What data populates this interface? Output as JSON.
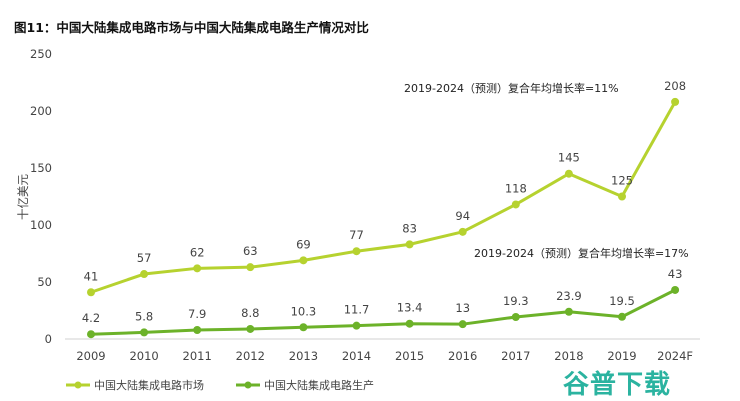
{
  "title": "图11：中国大陆集成电路市场与中国大陆集成电路生产情况对比",
  "watermark": "谷普下载",
  "chart_data": {
    "type": "line",
    "title": "图11：中国大陆集成电路市场与中国大陆集成电路生产情况对比",
    "xlabel": "",
    "ylabel": "十亿美元",
    "ylim": [
      0,
      250
    ],
    "yticks": [
      0,
      50,
      100,
      150,
      200,
      250
    ],
    "grid": false,
    "legend": "bottom-left",
    "categories": [
      "2009",
      "2010",
      "2011",
      "2012",
      "2013",
      "2014",
      "2015",
      "2016",
      "2017",
      "2018",
      "2019",
      "2024F"
    ],
    "series": [
      {
        "name": "中国大陆集成电路市场",
        "color": "#b6d22f",
        "values": [
          41,
          57,
          62,
          63,
          69,
          77,
          83,
          94,
          118,
          145,
          125,
          208
        ],
        "labels": [
          "41",
          "57",
          "62",
          "63",
          "69",
          "77",
          "83",
          "94",
          "118",
          "145",
          "125",
          "208"
        ]
      },
      {
        "name": "中国大陆集成电路生产",
        "color": "#6cb229",
        "values": [
          4.2,
          5.8,
          7.9,
          8.8,
          10.3,
          11.7,
          13.4,
          13,
          19.3,
          23.9,
          19.5,
          43
        ],
        "labels": [
          "4.2",
          "5.8",
          "7.9",
          "8.8",
          "10.3",
          "11.7",
          "13.4",
          "13",
          "19.3",
          "23.9",
          "19.5",
          "43"
        ]
      }
    ],
    "annotations": [
      "2019-2024（预测）复合年均增长率=11%",
      "2019-2024（预测）复合年均增长率=17%"
    ]
  }
}
